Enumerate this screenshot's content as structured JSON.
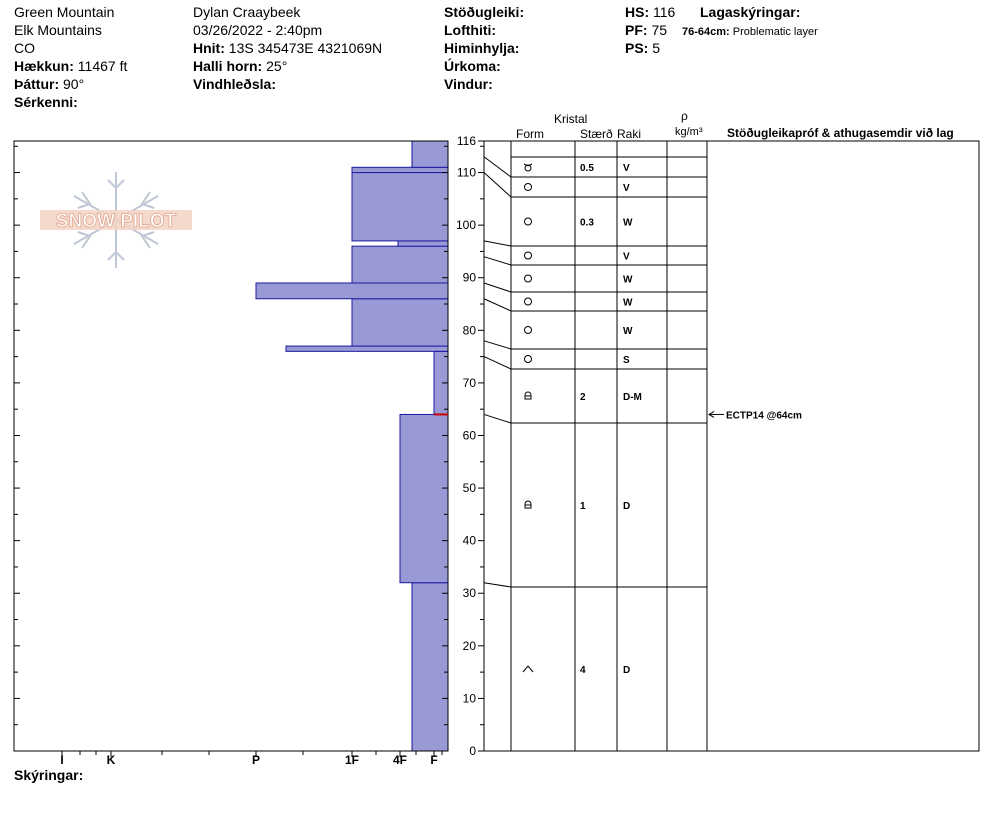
{
  "header": {
    "location": "Green Mountain",
    "range": "Elk Mountains",
    "state": "CO",
    "elevation_label": "Hækkun:",
    "elevation_value": "11467 ft",
    "aspect_label": "Þáttur:",
    "aspect_value": "90°",
    "specifics_label": "Sérkenni:",
    "observer": "Dylan Craaybeek",
    "datetime": "03/26/2022 - 2:40pm",
    "coords_label": "Hnit:",
    "coords_value": "13S 345473E 4321069N",
    "slope_label": "Halli horn:",
    "slope_value": "25°",
    "wind_loading_label": "Vindhleðsla:",
    "stability_label": "Stöðugleiki:",
    "air_temp_label": "Lofthiti:",
    "sky_label": "Himinhylja:",
    "precip_label": "Úrkoma:",
    "wind_label": "Vindur:",
    "hs_label": "HS:",
    "hs_value": "116",
    "pf_label": "PF:",
    "pf_value": "75",
    "ps_label": "PS:",
    "ps_value": "5",
    "layer_notes_label": "Lagaskýringar:",
    "layer_note_range": "76-64cm:",
    "layer_note_text": "Problematic layer"
  },
  "table_headers": {
    "crystal": "Kristal",
    "form": "Form",
    "size": "Stærð",
    "moisture": "Raki",
    "rho": "ρ",
    "density_unit": "kg/m³",
    "tests": "Stöðugleikapróf & athugasemdir við lag"
  },
  "legend_label": "Skýringar:",
  "logo_text": "SNOW PILOT",
  "test_result": "ECTP14 @64cm",
  "colors": {
    "bar_fill": "#9999d6",
    "bar_stroke": "#1a1aa0",
    "marker": "#cc0000"
  },
  "chart_data": {
    "type": "bar",
    "orientation": "horizontal",
    "y_axis": {
      "min": 0,
      "max": 116,
      "ticks": [
        0,
        10,
        20,
        30,
        40,
        50,
        60,
        70,
        80,
        90,
        100,
        110,
        116
      ]
    },
    "x_axis": {
      "categories": [
        "I",
        "K",
        "P",
        "1F",
        "4F",
        "F"
      ],
      "hardness_scale": [
        1,
        2,
        3,
        4,
        5,
        6
      ]
    },
    "hardness_layers": [
      {
        "bottom": 0,
        "top": 32,
        "hardness": "4F-"
      },
      {
        "bottom": 32,
        "top": 64,
        "hardness": "4F"
      },
      {
        "bottom": 64,
        "top": 76,
        "hardness": "F+"
      },
      {
        "bottom": 76,
        "top": 77,
        "hardness": "P-"
      },
      {
        "bottom": 77,
        "top": 86,
        "hardness": "1F"
      },
      {
        "bottom": 86,
        "top": 89,
        "hardness": "P"
      },
      {
        "bottom": 89,
        "top": 96,
        "hardness": "1F"
      },
      {
        "bottom": 96,
        "top": 97,
        "hardness": "4F+"
      },
      {
        "bottom": 97,
        "top": 110,
        "hardness": "1F"
      },
      {
        "bottom": 110,
        "top": 111,
        "hardness": "1F"
      },
      {
        "bottom": 111,
        "top": 116,
        "hardness": "4F-"
      }
    ],
    "weak_layer_marker": 64,
    "stratigraphy": [
      {
        "bottom": 113,
        "top": 116,
        "form": "precip",
        "size": "0.5",
        "moisture": "V"
      },
      {
        "bottom": 110,
        "top": 113,
        "form": "round",
        "size": "",
        "moisture": "V"
      },
      {
        "bottom": 97,
        "top": 110,
        "form": "round",
        "size": "0.3",
        "moisture": "W"
      },
      {
        "bottom": 94,
        "top": 97,
        "form": "round",
        "size": "",
        "moisture": "V"
      },
      {
        "bottom": 89,
        "top": 94,
        "form": "round",
        "size": "",
        "moisture": "W"
      },
      {
        "bottom": 86,
        "top": 89,
        "form": "round",
        "size": "",
        "moisture": "W"
      },
      {
        "bottom": 78,
        "top": 86,
        "form": "round",
        "size": "",
        "moisture": "W"
      },
      {
        "bottom": 75,
        "top": 78,
        "form": "round",
        "size": "",
        "moisture": "S"
      },
      {
        "bottom": 64,
        "top": 75,
        "form": "facet_round",
        "size": "2",
        "moisture": "D-M"
      },
      {
        "bottom": 32,
        "top": 64,
        "form": "facet_round",
        "size": "1",
        "moisture": "D"
      },
      {
        "bottom": 0,
        "top": 32,
        "form": "depth_hoar",
        "size": "4",
        "moisture": "D"
      }
    ]
  }
}
